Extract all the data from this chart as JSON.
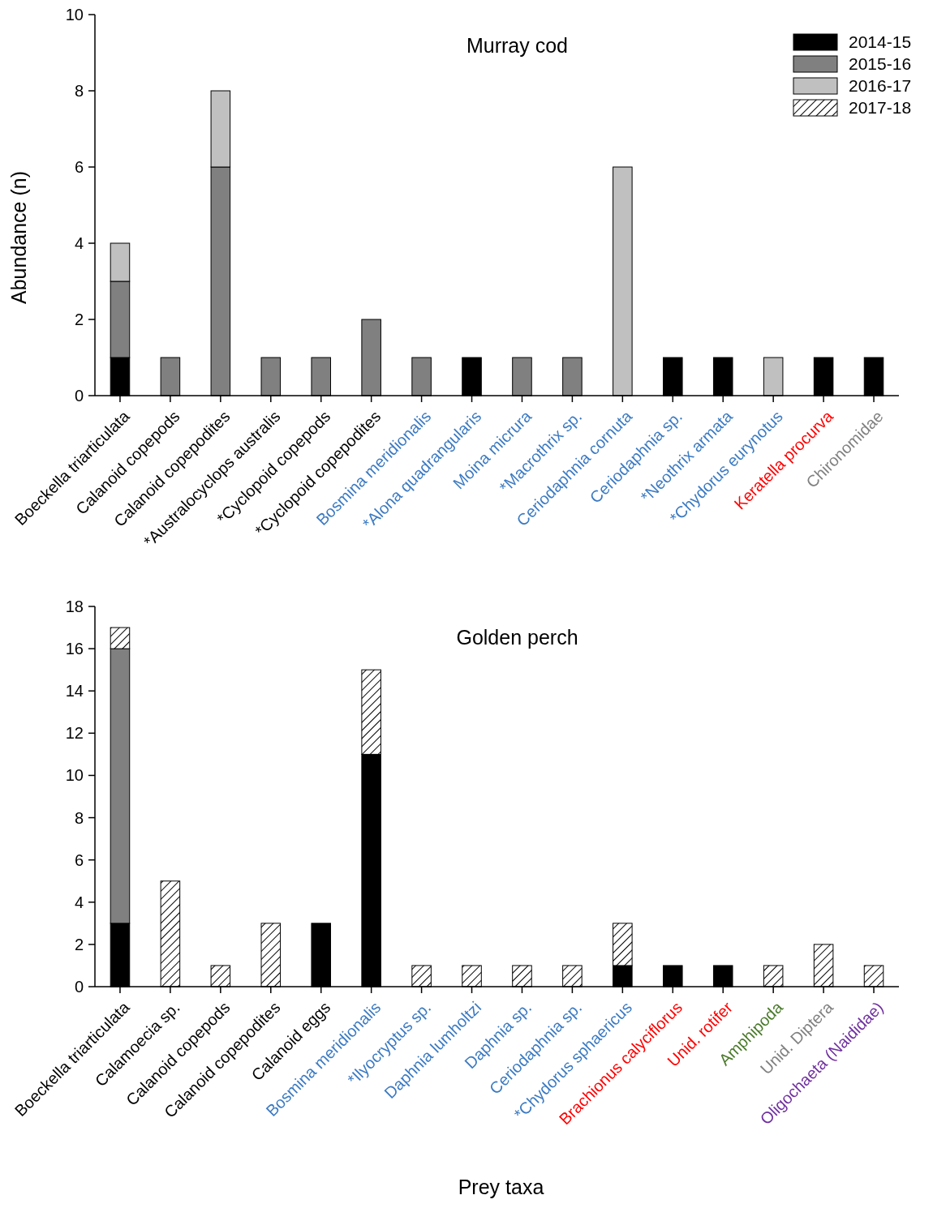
{
  "chart_data": [
    {
      "type": "bar",
      "stacked": true,
      "title": "Murray cod",
      "ylabel": "Abundance (n)",
      "ylim": [
        0,
        10
      ],
      "yticks": [
        0,
        2,
        4,
        6,
        8,
        10
      ],
      "grid": false,
      "legend": "top right",
      "categories": [
        "Boeckella triarticulata",
        "Calanoid copepods",
        "Calanoid copepodites",
        "*Australocyclops australis",
        "*Cyclopoid copepods",
        "*Cyclopoid copepodites",
        "Bosmina meridionalis",
        "*Alona quadrangularis",
        "Moina micrura",
        "*Macrothrix sp.",
        "Ceriodaphnia cornuta",
        "Ceriodaphnia sp.",
        "*Neothrix armata",
        "*Chydorus eurynotus",
        "Keratella procurva",
        "Chironomidae"
      ],
      "series": [
        {
          "name": "2014-15",
          "color": "#000000",
          "values": [
            1,
            null,
            null,
            null,
            null,
            null,
            null,
            1,
            null,
            null,
            null,
            1,
            1,
            null,
            1,
            1
          ]
        },
        {
          "name": "2015-16",
          "color": "#808080",
          "values": [
            2,
            1,
            6,
            1,
            1,
            2,
            1,
            null,
            1,
            1,
            null,
            null,
            null,
            null,
            null,
            null
          ]
        },
        {
          "name": "2016-17",
          "color": "#c0c0c0",
          "values": [
            1,
            null,
            2,
            null,
            null,
            null,
            null,
            null,
            null,
            null,
            6,
            null,
            null,
            1,
            null,
            null
          ]
        },
        {
          "name": "2017-18",
          "color": "#000000",
          "values": [
            null,
            null,
            null,
            null,
            null,
            null,
            null,
            null,
            null,
            null,
            null,
            null,
            null,
            null,
            null,
            null
          ]
        }
      ]
    },
    {
      "type": "bar",
      "stacked": true,
      "title": "Golden perch",
      "xlabel": "Prey taxa",
      "ylim": [
        0,
        18
      ],
      "yticks": [
        0,
        2,
        4,
        6,
        8,
        10,
        12,
        14,
        16,
        18
      ],
      "grid": false,
      "legend": false,
      "categories": [
        "Boeckella triarticulata",
        "Calamoecia sp.",
        "Calanoid copepods",
        "Calanoid copepodites",
        "Calanoid eggs",
        "Bosmina meridionalis",
        "*Ilyocryptus sp.",
        "Daphnia lumholtzi",
        "Daphnia sp.",
        "Ceriodaphnia sp.",
        "*Chydorus sphaericus",
        "Brachionus calyciflorus",
        "Unid. rotifer",
        "Amphipoda",
        "Unid. Diptera",
        "Oligochaeta (Naididae)"
      ],
      "series": [
        {
          "color": "#000000",
          "values": [
            3,
            null,
            null,
            null,
            3,
            11,
            null,
            null,
            null,
            null,
            1,
            1,
            1,
            null,
            null,
            null
          ]
        },
        {
          "color": "#808080",
          "values": [
            13,
            null,
            null,
            null,
            null,
            null,
            null,
            null,
            null,
            null,
            null,
            null,
            null,
            null,
            null,
            null
          ]
        },
        {
          "color": "#000000",
          "values": [
            1,
            5,
            1,
            3,
            null,
            4,
            1,
            1,
            1,
            1,
            2,
            null,
            null,
            1,
            2,
            1
          ]
        }
      ]
    }
  ]
}
